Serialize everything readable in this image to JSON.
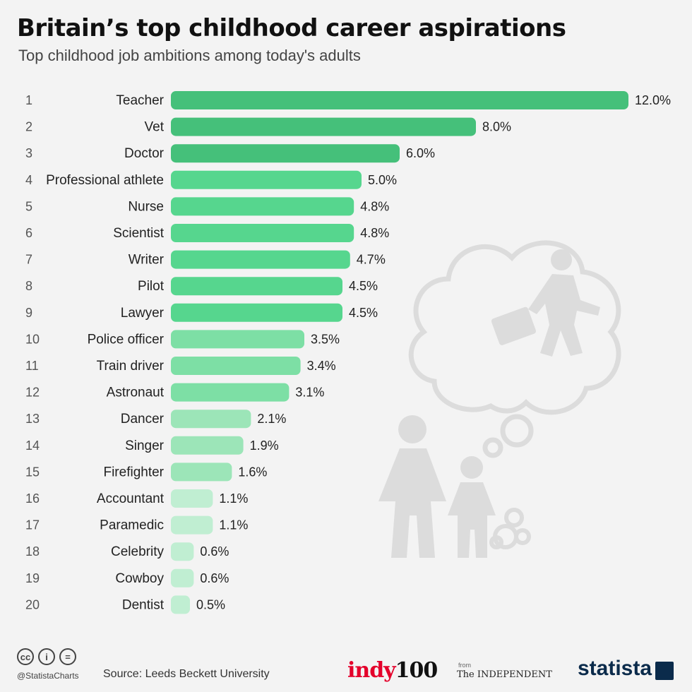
{
  "header": {
    "title": "Britain’s top childhood career aspirations",
    "subtitle": "Top childhood job ambitions among today's adults"
  },
  "footer": {
    "cc_icons": [
      "cc-icon",
      "attribution-icon",
      "no-derivatives-icon"
    ],
    "cc_glyphs": [
      "cc",
      "i",
      "="
    ],
    "handle": "@StatistaCharts",
    "source": "Source: Leeds Beckett University",
    "indy_red": "indy",
    "indy_black": "100",
    "from": "from",
    "independent": "The INDEPENDENT",
    "statista": "statista"
  },
  "colors": {
    "background": "#f3f3f3",
    "bar_dark": "#45c07a",
    "bar_mid": "#56d68e",
    "bar_light": "#7ddfa5",
    "bar_lighter": "#9ce5b8",
    "bar_lightest": "#c0eed2",
    "illustration": "#dcdcdc"
  },
  "chart_data": {
    "type": "bar",
    "orientation": "horizontal",
    "value_suffix": "%",
    "ranks": [
      "1",
      "2",
      "3",
      "4",
      "5",
      "6",
      "7",
      "8",
      "9",
      "10",
      "11",
      "12",
      "13",
      "14",
      "15",
      "16",
      "17",
      "18",
      "19",
      "20"
    ],
    "categories": [
      "Teacher",
      "Vet",
      "Doctor",
      "Professional athlete",
      "Nurse",
      "Scientist",
      "Writer",
      "Pilot",
      "Lawyer",
      "Police officer",
      "Train driver",
      "Astronaut",
      "Dancer",
      "Singer",
      "Firefighter",
      "Accountant",
      "Paramedic",
      "Celebrity",
      "Cowboy",
      "Dentist"
    ],
    "values": [
      12.0,
      8.0,
      6.0,
      5.0,
      4.8,
      4.8,
      4.7,
      4.5,
      4.5,
      3.5,
      3.4,
      3.1,
      2.1,
      1.9,
      1.6,
      1.1,
      1.1,
      0.6,
      0.6,
      0.5
    ],
    "value_labels": [
      "12.0%",
      "8.0%",
      "6.0%",
      "5.0%",
      "4.8%",
      "4.8%",
      "4.7%",
      "4.5%",
      "4.5%",
      "3.5%",
      "3.4%",
      "3.1%",
      "2.1%",
      "1.9%",
      "1.6%",
      "1.1%",
      "1.1%",
      "0.6%",
      "0.6%",
      "0.5%"
    ],
    "xlim": [
      0,
      12
    ],
    "grid": false,
    "legend": "none"
  }
}
